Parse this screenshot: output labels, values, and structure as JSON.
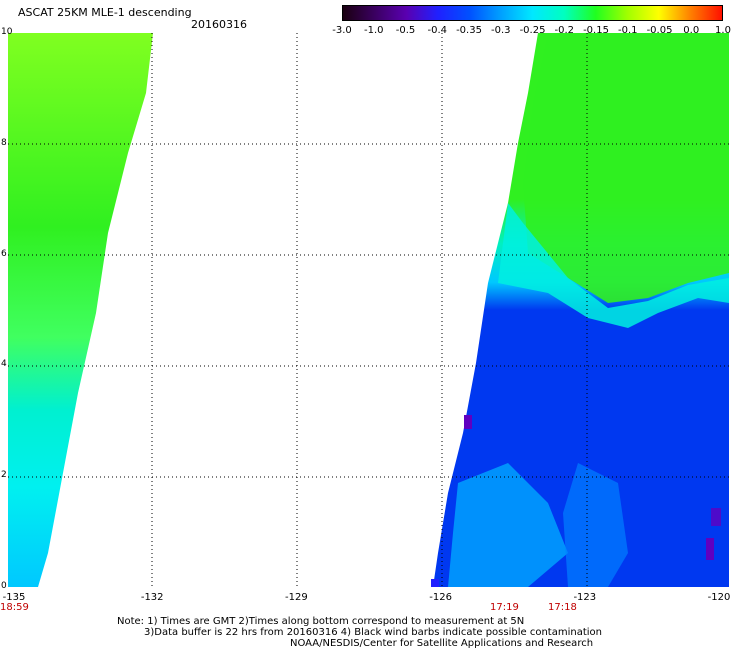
{
  "header": {
    "title": "ASCAT 25KM MLE-1 descending",
    "date": "20160316"
  },
  "colorbar": {
    "tick_labels": [
      "-3.0",
      "-1.0",
      "-0.5",
      "-0.4",
      "-0.35",
      "-0.3",
      "-0.25",
      "-0.2",
      "-0.15",
      "-0.1",
      "-0.05",
      "0.0",
      "1.0"
    ],
    "colors": [
      "#1a0010",
      "#3a0060",
      "#5a00b0",
      "#2020ff",
      "#0050ff",
      "#00a0ff",
      "#00e8ff",
      "#00ffc0",
      "#20ff20",
      "#a0ff00",
      "#ffff00",
      "#ff8000",
      "#ff1000"
    ]
  },
  "map": {
    "x_axis_labels": [
      "-135",
      "-132",
      "-129",
      "-126",
      "-123",
      "-120"
    ],
    "y_axis_labels": [
      "0",
      "2",
      "4",
      "6",
      "8",
      "10"
    ],
    "pass_times": {
      "left": "18:59",
      "right_a": "17:19",
      "right_b": "17:18"
    },
    "colors": {
      "green": "#30f020",
      "light_green": "#80ff20",
      "cyan": "#00f0f0",
      "light_blue": "#00c8ff",
      "blue": "#0038f0",
      "mid_blue": "#0060ff",
      "purple": "#6000c0"
    }
  },
  "notes": {
    "line1": "Note: 1) Times are GMT 2)Times along bottom correspond to measurement at 5N",
    "line2": "3)Data buffer is 22 hrs from 20160316 4) Black wind barbs indicate possible contamination",
    "line3": "NOAA/NESDIS/Center for Satellite Applications and Research"
  }
}
